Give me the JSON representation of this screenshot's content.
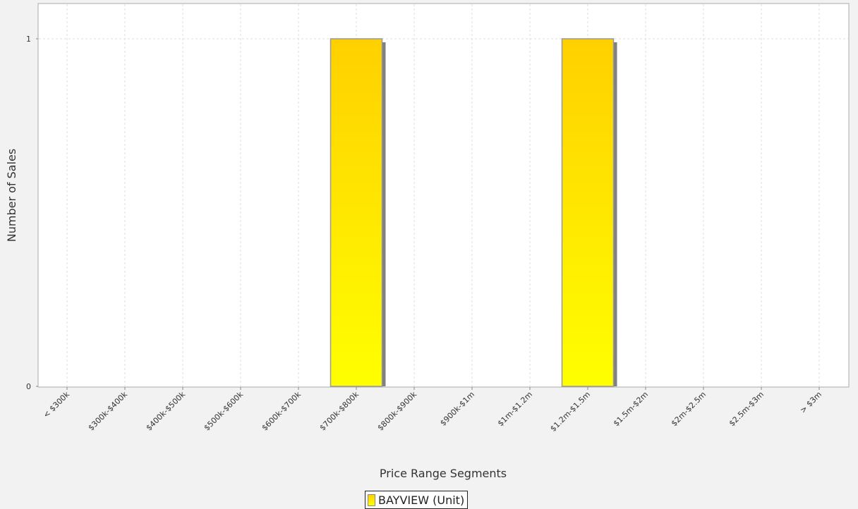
{
  "chart_data": {
    "type": "bar",
    "xlabel": "Price Range Segments",
    "ylabel": "Number of Sales",
    "categories": [
      "< $300k",
      "$300k-$400k",
      "$400k-$500k",
      "$500k-$600k",
      "$600k-$700k",
      "$700k-$800k",
      "$800k-$900k",
      "$900k-$1m",
      "$1m-$1.2m",
      "$1.2m-$1.5m",
      "$1.5m-$2m",
      "$2m-$2.5m",
      "$2.5m-$3m",
      "> $3m"
    ],
    "series": [
      {
        "name": "BAYVIEW (Unit)",
        "values": [
          0,
          0,
          0,
          0,
          0,
          1,
          0,
          0,
          0,
          1,
          0,
          0,
          0,
          0
        ]
      }
    ],
    "ylim": [
      0,
      1
    ],
    "yticks": [
      0,
      1
    ],
    "grid": true,
    "legend_position": "bottom",
    "colors": {
      "bar_top": "#ffd000",
      "bar_bottom": "#ffff00",
      "bar_border": "#999999",
      "shadow": "#808080",
      "plot_background": "#ffffff",
      "page_background": "#f2f2f2",
      "gridline": "#dddddd"
    }
  },
  "legend": {
    "label": "BAYVIEW (Unit)"
  }
}
